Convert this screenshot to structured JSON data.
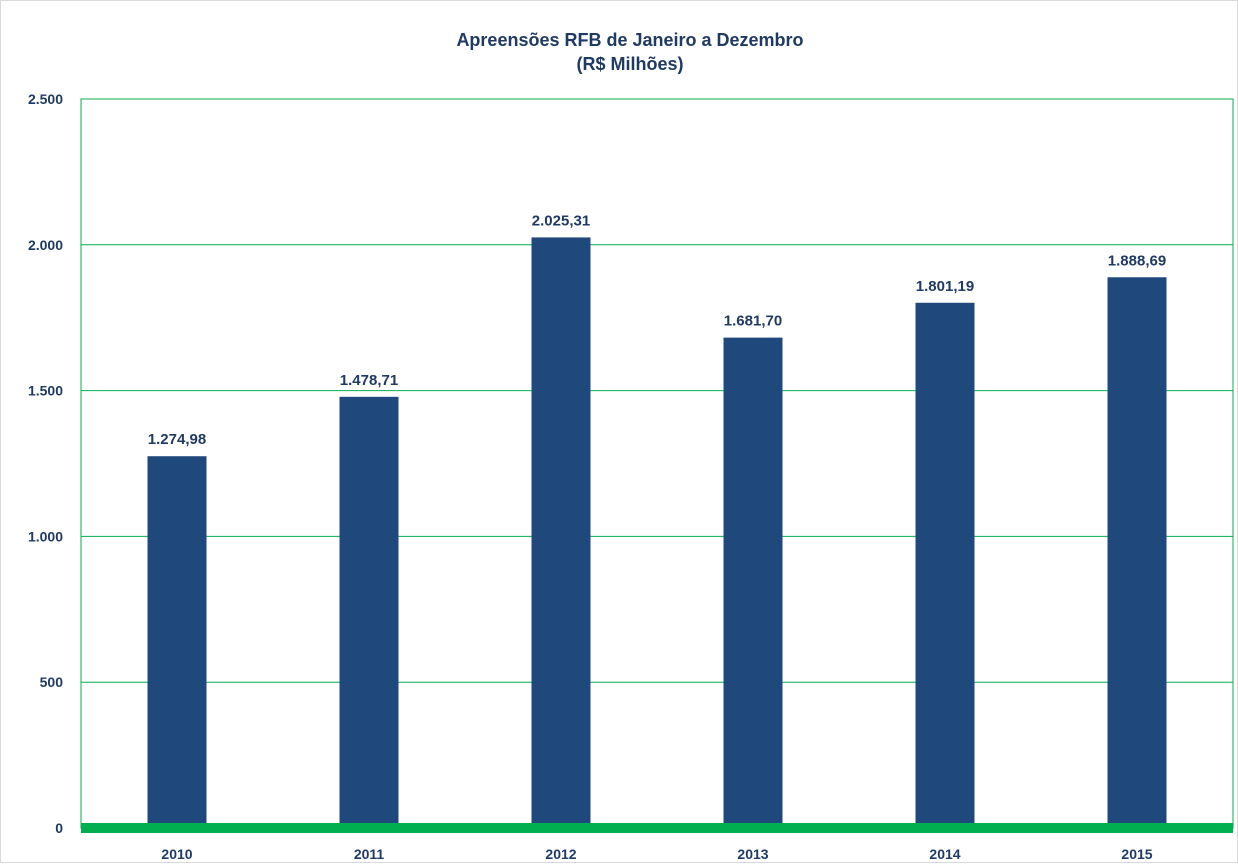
{
  "chart_data": {
    "type": "bar",
    "title": "Apreensões RFB de Janeiro a Dezembro",
    "subtitle": "(R$ Milhões)",
    "xlabel": "",
    "ylabel": "",
    "categories": [
      "2010",
      "2011",
      "2012",
      "2013",
      "2014",
      "2015"
    ],
    "values": [
      1274.98,
      1478.71,
      2025.31,
      1681.7,
      1801.19,
      1888.69
    ],
    "value_labels": [
      "1.274,98",
      "1.478,71",
      "2.025,31",
      "1.681,70",
      "1.801,19",
      "1.888,69"
    ],
    "ylim": [
      0,
      2500
    ],
    "yticks": [
      0,
      500,
      1000,
      1500,
      2000,
      2500
    ],
    "ytick_labels": [
      "0",
      "500",
      "1.000",
      "1.500",
      "2.000",
      "2.500"
    ],
    "grid": true,
    "legend": "none",
    "colors": {
      "bar": "#1f497d",
      "grid": "#00b050",
      "baseline": "#00b050",
      "text": "#1f3a63"
    }
  }
}
